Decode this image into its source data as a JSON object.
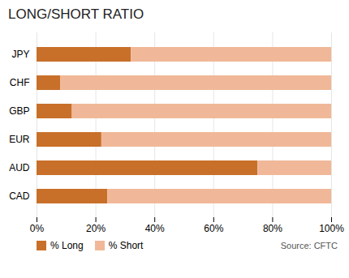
{
  "chart_data": {
    "type": "bar",
    "orientation": "horizontal",
    "stacked": true,
    "title": "LONG/SHORT RATIO",
    "categories": [
      "JPY",
      "CHF",
      "GBP",
      "EUR",
      "AUD",
      "CAD"
    ],
    "series": [
      {
        "name": "% Long",
        "color": "#c8702a",
        "values": [
          32,
          8,
          12,
          22,
          75,
          24
        ]
      },
      {
        "name": "% Short",
        "color": "#f0b898",
        "values": [
          68,
          92,
          88,
          78,
          25,
          76
        ]
      }
    ],
    "xlim": [
      0,
      100
    ],
    "xticks": [
      {
        "value": 0,
        "label": "0%"
      },
      {
        "value": 20,
        "label": "20%"
      },
      {
        "value": 40,
        "label": "40%"
      },
      {
        "value": 60,
        "label": "60%"
      },
      {
        "value": 80,
        "label": "80%"
      },
      {
        "value": 100,
        "label": "100%"
      }
    ],
    "grid": true,
    "legend": "bottom",
    "annotations": [
      "Source: CFTC"
    ]
  }
}
